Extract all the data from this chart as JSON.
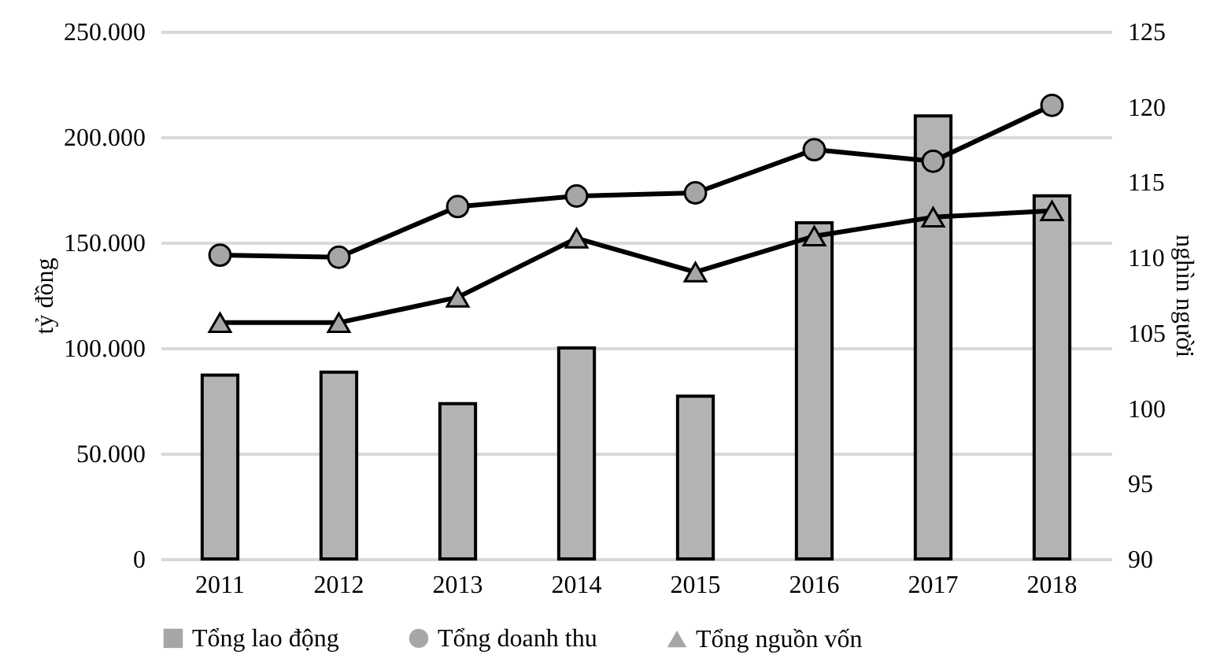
{
  "chart_data": {
    "type": "bar",
    "categories": [
      "2011",
      "2012",
      "2013",
      "2014",
      "2015",
      "2016",
      "2017",
      "2018"
    ],
    "series": [
      {
        "name": "Tổng lao động",
        "axis": "y2",
        "color": "#b3b3b3",
        "values": [
          102.2,
          102.4,
          100.3,
          104.0,
          100.8,
          112.3,
          119.4,
          114.1
        ]
      },
      {
        "name": "Tổng doanh thu",
        "type": "line",
        "marker": "circle",
        "color": "#000000",
        "values": [
          144000,
          143000,
          167000,
          172000,
          173500,
          194000,
          188500,
          215000
        ]
      },
      {
        "name": "Tổng nguồn vốn",
        "type": "line",
        "marker": "triangle",
        "color": "#000000",
        "values": [
          112000,
          112000,
          124000,
          152000,
          136000,
          153000,
          162000,
          165000
        ]
      }
    ],
    "ylabel": "tỷ đồng",
    "y2label": "nghìn người",
    "ylim": [
      0,
      250000
    ],
    "yticks": [
      0,
      {
        "value": 50000,
        "label": "50.000"
      },
      {
        "value": 100000,
        "label": "100.000"
      },
      {
        "value": 150000,
        "label": "150.000"
      },
      {
        "value": 200000,
        "label": "200.000"
      },
      {
        "value": 250000,
        "label": "250.000"
      }
    ],
    "y2lim": [
      90,
      125
    ],
    "y2ticks": [
      90,
      95,
      100,
      105,
      110,
      115,
      120,
      125
    ],
    "grid": "y",
    "legend": "bottom"
  }
}
